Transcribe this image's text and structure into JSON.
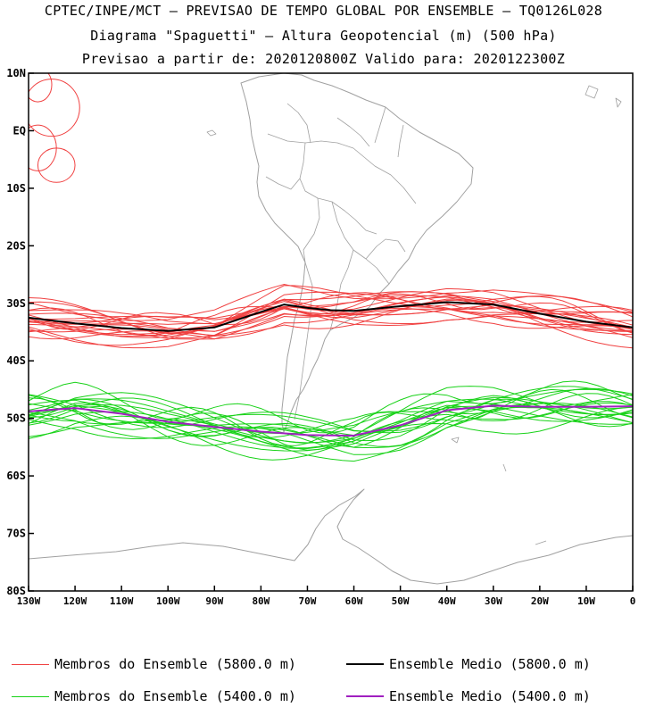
{
  "title": {
    "line1": "CPTEC/INPE/MCT — PREVISAO DE TEMPO GLOBAL POR ENSEMBLE — TQ0126L028",
    "line2": "Diagrama \"Spaguetti\" — Altura Geopotencial (m) (500 hPa)",
    "line3": "Previsao a partir de: 2020120800Z  Valido para: 2020122300Z"
  },
  "axes": {
    "lat_labels": [
      "10N",
      "EQ",
      "10S",
      "20S",
      "30S",
      "40S",
      "50S",
      "60S",
      "70S",
      "80S"
    ],
    "lat_values": [
      10,
      0,
      -10,
      -20,
      -30,
      -40,
      -50,
      -60,
      -70,
      -80
    ],
    "lon_labels": [
      "130W",
      "120W",
      "110W",
      "100W",
      "90W",
      "80W",
      "70W",
      "60W",
      "50W",
      "40W",
      "30W",
      "20W",
      "10W",
      "0"
    ],
    "lon_values": [
      -130,
      -120,
      -110,
      -100,
      -90,
      -80,
      -70,
      -60,
      -50,
      -40,
      -30,
      -20,
      -10,
      0
    ]
  },
  "legend": {
    "red_members": "Membros do Ensemble (5800.0 m)",
    "black_mean": "Ensemble Medio (5800.0 m)",
    "green_members": "Membros do Ensemble (5400.0 m)",
    "purple_mean": "Ensemble Medio (5400.0 m)"
  },
  "colors": {
    "red_members": "#f04040",
    "black_mean": "#000000",
    "green_members": "#19d219",
    "purple_mean": "#a020c0",
    "coastline": "#a0a0a0"
  },
  "chart_data": {
    "type": "line",
    "x_range": [
      -130,
      0
    ],
    "y_range": [
      -80,
      10
    ],
    "mean_5800": {
      "lon": [
        -130,
        -120,
        -110,
        -100,
        -90,
        -80,
        -75,
        -70,
        -65,
        -60,
        -50,
        -40,
        -30,
        -20,
        -10,
        0
      ],
      "lat": [
        -32.5,
        -33.5,
        -34.3,
        -34.8,
        -34.2,
        -31.5,
        -30.2,
        -30.8,
        -31.2,
        -31.3,
        -30.5,
        -29.8,
        -30.2,
        -31.8,
        -33.2,
        -34.2
      ]
    },
    "mean_5400": {
      "lon": [
        -130,
        -120,
        -110,
        -100,
        -90,
        -80,
        -70,
        -60,
        -50,
        -40,
        -30,
        -20,
        -10,
        0
      ],
      "lat": [
        -48.8,
        -48.2,
        -49.2,
        -50.6,
        -51.5,
        -52.3,
        -52.9,
        -53.0,
        -51.2,
        -48.6,
        -47.8,
        -48.0,
        -48.0,
        -47.9
      ]
    }
  }
}
